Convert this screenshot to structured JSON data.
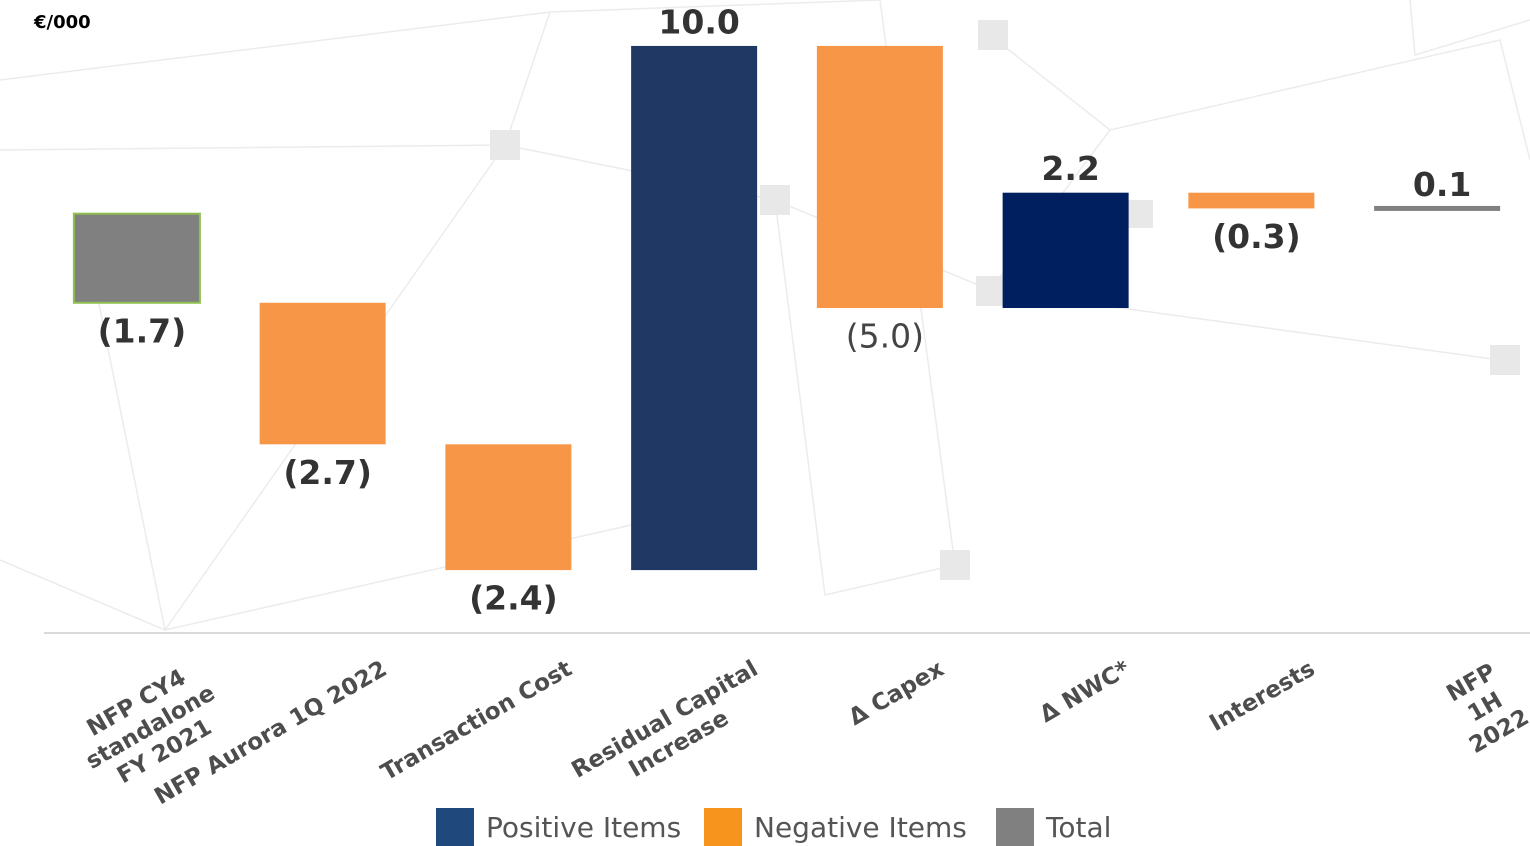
{
  "chart_data": {
    "type": "waterfall",
    "unit": "€/000",
    "categories": [
      "NFP CY4\nstandalone\nFY 2021",
      "NFP Aurora 1Q 2022",
      "Transaction Cost",
      "Residual Capital\nIncrease",
      "Δ Capex",
      "Δ NWC*",
      "Interests",
      "NFP 1H 2022"
    ],
    "values": [
      -1.7,
      -2.7,
      -2.4,
      10.0,
      -5.0,
      2.2,
      -0.3,
      0.1
    ],
    "value_labels": [
      "(1.7)",
      "(2.7)",
      "(2.4)",
      "10.0",
      "(5.0)",
      "2.2",
      "(0.3)",
      "0.1"
    ],
    "is_total": [
      true,
      false,
      false,
      false,
      false,
      false,
      false,
      true
    ],
    "colors": [
      "#808080",
      "#f79646",
      "#f79646",
      "#203864",
      "#f79646",
      "#001f5f",
      "#f79646",
      "#808080"
    ],
    "ylim": [
      -8,
      4
    ],
    "legend": [
      {
        "name": "Positive Items",
        "color": "#1f497d"
      },
      {
        "name": "Negative Items",
        "color": "#f7941d"
      },
      {
        "name": "Total",
        "color": "#808080"
      }
    ]
  }
}
